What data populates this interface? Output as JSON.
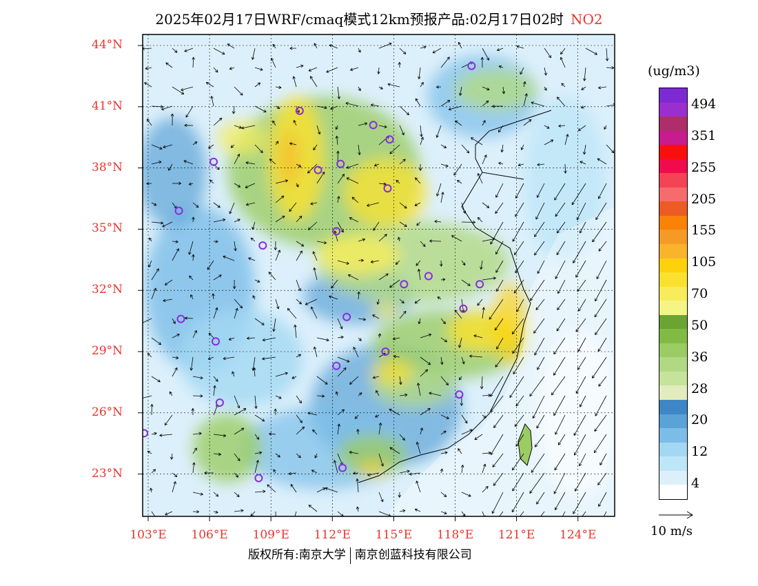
{
  "title": {
    "main": "2025年02月17日WRF/cmaq模式12km预报产品:02月17日02时",
    "pollutant": "NO2"
  },
  "map": {
    "lat_labels": [
      "44°N",
      "41°N",
      "38°N",
      "35°N",
      "32°N",
      "29°N",
      "26°N",
      "23°N"
    ],
    "lon_labels": [
      "103°E",
      "106°E",
      "109°E",
      "112°E",
      "115°E",
      "118°E",
      "121°E",
      "124°E"
    ],
    "label_color": "#e8342c"
  },
  "stations": [
    {
      "lat": 43.0,
      "lon": 118.8
    },
    {
      "lat": 40.8,
      "lon": 110.4
    },
    {
      "lat": 40.1,
      "lon": 114.0
    },
    {
      "lat": 39.4,
      "lon": 114.8
    },
    {
      "lat": 38.3,
      "lon": 106.2
    },
    {
      "lat": 38.2,
      "lon": 112.4
    },
    {
      "lat": 37.9,
      "lon": 111.3
    },
    {
      "lat": 37.0,
      "lon": 114.7
    },
    {
      "lat": 35.9,
      "lon": 104.5
    },
    {
      "lat": 34.9,
      "lon": 112.2
    },
    {
      "lat": 34.2,
      "lon": 108.6
    },
    {
      "lat": 32.7,
      "lon": 116.7
    },
    {
      "lat": 32.3,
      "lon": 115.5
    },
    {
      "lat": 32.3,
      "lon": 119.2
    },
    {
      "lat": 31.1,
      "lon": 118.4
    },
    {
      "lat": 30.7,
      "lon": 112.7
    },
    {
      "lat": 30.6,
      "lon": 104.6
    },
    {
      "lat": 29.5,
      "lon": 106.3
    },
    {
      "lat": 29.0,
      "lon": 114.6
    },
    {
      "lat": 28.3,
      "lon": 112.2
    },
    {
      "lat": 26.9,
      "lon": 118.2
    },
    {
      "lat": 26.5,
      "lon": 106.5
    },
    {
      "lat": 25.0,
      "lon": 102.8
    },
    {
      "lat": 23.3,
      "lon": 112.5
    },
    {
      "lat": 22.8,
      "lon": 108.4
    }
  ],
  "colorbar": {
    "unit": "(ug/m3)",
    "colors": [
      "#ffffff",
      "#dcf0fb",
      "#bde6f8",
      "#a2d8f2",
      "#7cbde8",
      "#5ba2d6",
      "#3f86c6",
      "#e3ecbe",
      "#c5e39a",
      "#b1d983",
      "#9bcc64",
      "#81ba45",
      "#6aa433",
      "#f4f585",
      "#f8ec5a",
      "#fbe12d",
      "#fdd20c",
      "#f9b42c",
      "#f59a26",
      "#f98207",
      "#ec5b26",
      "#f66b6c",
      "#f44355",
      "#f10b4c",
      "#fa0f0f",
      "#c81b8e",
      "#ad2e6a",
      "#9b2fce",
      "#7d2ad4"
    ],
    "ticks": [
      {
        "label": "4",
        "level": 1
      },
      {
        "label": "12",
        "level": 3
      },
      {
        "label": "20",
        "level": 5
      },
      {
        "label": "28",
        "level": 7
      },
      {
        "label": "36",
        "level": 9
      },
      {
        "label": "50",
        "level": 11
      },
      {
        "label": "70",
        "level": 13
      },
      {
        "label": "105",
        "level": 15
      },
      {
        "label": "155",
        "level": 17
      },
      {
        "label": "205",
        "level": 19
      },
      {
        "label": "255",
        "level": 21
      },
      {
        "label": "351",
        "level": 23
      },
      {
        "label": "494",
        "level": 25
      }
    ]
  },
  "vector_label": "10 m/s",
  "copyright": {
    "left": "版权所有:南京大学",
    "right": "南京创蓝科技有限公司"
  }
}
